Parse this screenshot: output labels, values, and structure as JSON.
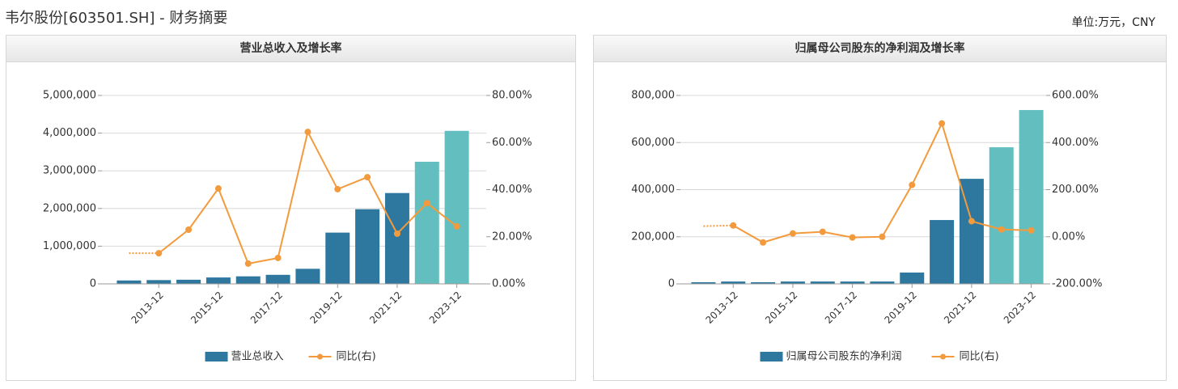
{
  "header": {
    "title": "韦尔股份[603501.SH] - 财务摘要",
    "unit": "单位:万元，CNY"
  },
  "chart_data": [
    {
      "type": "bar_line",
      "title": "营业总收入及增长率",
      "categories": [
        null,
        "2013-12",
        null,
        "2015-12",
        null,
        "2017-12",
        null,
        "2019-12",
        null,
        "2021-12",
        null,
        "2023-12"
      ],
      "series": [
        {
          "name": "营业总收入",
          "color": "#2e78a0",
          "colors": [
            "#2e78a0",
            "#2e78a0",
            "#2e78a0",
            "#2e78a0",
            "#2e78a0",
            "#2e78a0",
            "#2e78a0",
            "#2e78a0",
            "#2e78a0",
            "#2e78a0",
            "#63bfbf",
            "#63bfbf"
          ],
          "values": [
            90000,
            100000,
            110000,
            170000,
            200000,
            240000,
            400000,
            1360000,
            1980000,
            2410000,
            3240000,
            4060000
          ]
        },
        {
          "name": "同比(右)",
          "color": "#f39a3c",
          "axis": "y2",
          "values": [
            13.0,
            13.0,
            23.0,
            40.5,
            8.6,
            11.0,
            64.5,
            40.2,
            45.3,
            21.3,
            34.3,
            24.4
          ]
        }
      ],
      "ylim": [
        0,
        5000000
      ],
      "yticks": [
        0,
        {
          "value": 1000000,
          "label": "1,000,000"
        },
        {
          "value": 2000000,
          "label": "2,000,000"
        },
        {
          "value": 3000000,
          "label": "3,000,000"
        },
        {
          "value": 4000000,
          "label": "4,000,000"
        },
        {
          "value": 5000000,
          "label": "5,000,000"
        }
      ],
      "y2lim": [
        0,
        80
      ],
      "y2ticks": [
        {
          "value": 0,
          "label": "0.00%"
        },
        {
          "value": 20,
          "label": "20.00%"
        },
        {
          "value": 40,
          "label": "40.00%"
        },
        {
          "value": 60,
          "label": "60.00%"
        },
        {
          "value": 80,
          "label": "80.00%"
        }
      ],
      "grid": true
    },
    {
      "type": "bar_line",
      "title": "归属母公司股东的净利润及增长率",
      "categories": [
        null,
        "2013-12",
        null,
        "2015-12",
        null,
        "2017-12",
        null,
        "2019-12",
        null,
        "2021-12",
        null,
        "2023-12"
      ],
      "series": [
        {
          "name": "归属母公司股东的净利润",
          "color": "#2e78a0",
          "colors": [
            "#2e78a0",
            "#2e78a0",
            "#2e78a0",
            "#2e78a0",
            "#2e78a0",
            "#2e78a0",
            "#2e78a0",
            "#2e78a0",
            "#2e78a0",
            "#2e78a0",
            "#63bfbf",
            "#63bfbf"
          ],
          "values": [
            7000,
            10000,
            7000,
            10000,
            10000,
            10000,
            10000,
            48000,
            271000,
            446000,
            580000,
            738000
          ]
        },
        {
          "name": "同比(右)",
          "color": "#f39a3c",
          "axis": "y2",
          "values": [
            45,
            48,
            -24,
            14,
            21,
            -3,
            0,
            220,
            481,
            66,
            31,
            27
          ]
        }
      ],
      "ylim": [
        0,
        800000
      ],
      "yticks": [
        0,
        {
          "value": 200000,
          "label": "200,000"
        },
        {
          "value": 400000,
          "label": "400,000"
        },
        {
          "value": 600000,
          "label": "600,000"
        },
        {
          "value": 800000,
          "label": "800,000"
        }
      ],
      "y2lim": [
        -200,
        600
      ],
      "y2ticks": [
        {
          "value": -200,
          "label": "-200.00%"
        },
        {
          "value": 0,
          "label": "0.00%"
        },
        {
          "value": 200,
          "label": "200.00%"
        },
        {
          "value": 400,
          "label": "400.00%"
        },
        {
          "value": 600,
          "label": "600.00%"
        }
      ],
      "grid": true
    }
  ]
}
